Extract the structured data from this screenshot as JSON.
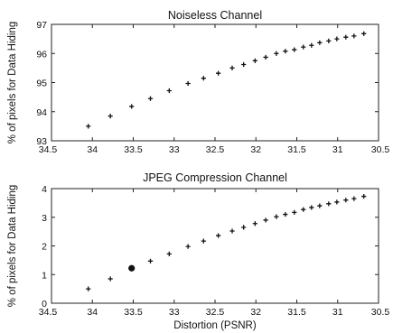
{
  "chart_data": [
    {
      "type": "scatter",
      "title": "Noiseless Channel",
      "xlabel": "",
      "ylabel": "% of pixels for Data Hiding",
      "xlim": [
        34.5,
        30.5
      ],
      "x_reversed": true,
      "ylim": [
        93,
        97
      ],
      "xticks": [
        "34.5",
        "34",
        "33.5",
        "33",
        "32.5",
        "32",
        "31.5",
        "31",
        "30.5"
      ],
      "yticks": [
        "93",
        "94",
        "95",
        "96",
        "97"
      ],
      "grid": false,
      "marker": "plus",
      "x": [
        34.05,
        33.78,
        33.52,
        33.29,
        33.06,
        32.83,
        32.64,
        32.46,
        32.29,
        32.15,
        32.01,
        31.88,
        31.75,
        31.64,
        31.53,
        31.42,
        31.32,
        31.22,
        31.11,
        31.01,
        30.9,
        30.8,
        30.68
      ],
      "y": [
        93.5,
        93.85,
        94.18,
        94.45,
        94.72,
        94.97,
        95.15,
        95.32,
        95.5,
        95.62,
        95.75,
        95.87,
        96.0,
        96.08,
        96.13,
        96.22,
        96.28,
        96.37,
        96.43,
        96.5,
        96.56,
        96.6,
        96.68
      ]
    },
    {
      "type": "scatter",
      "title": "JPEG Compression Channel",
      "xlabel": "Distortion (PSNR)",
      "ylabel": "% of pixels for Data Hiding",
      "xlim": [
        34.5,
        30.5
      ],
      "x_reversed": true,
      "ylim": [
        0,
        4
      ],
      "xticks": [
        "34.5",
        "34",
        "33.5",
        "33",
        "32.5",
        "32",
        "31.5",
        "31",
        "30.5"
      ],
      "yticks": [
        "0",
        "1",
        "2",
        "3",
        "4"
      ],
      "grid": false,
      "marker": "plus",
      "x": [
        34.05,
        33.78,
        33.52,
        33.29,
        33.06,
        32.83,
        32.64,
        32.46,
        32.29,
        32.15,
        32.01,
        31.88,
        31.75,
        31.64,
        31.53,
        31.42,
        31.32,
        31.22,
        31.11,
        31.01,
        30.9,
        30.8,
        30.68
      ],
      "y": [
        0.5,
        0.85,
        1.22,
        1.47,
        1.72,
        1.98,
        2.17,
        2.36,
        2.52,
        2.65,
        2.78,
        2.9,
        3.02,
        3.1,
        3.17,
        3.27,
        3.34,
        3.4,
        3.47,
        3.53,
        3.6,
        3.65,
        3.73
      ],
      "highlight": {
        "x": 33.52,
        "y": 1.22
      }
    }
  ]
}
